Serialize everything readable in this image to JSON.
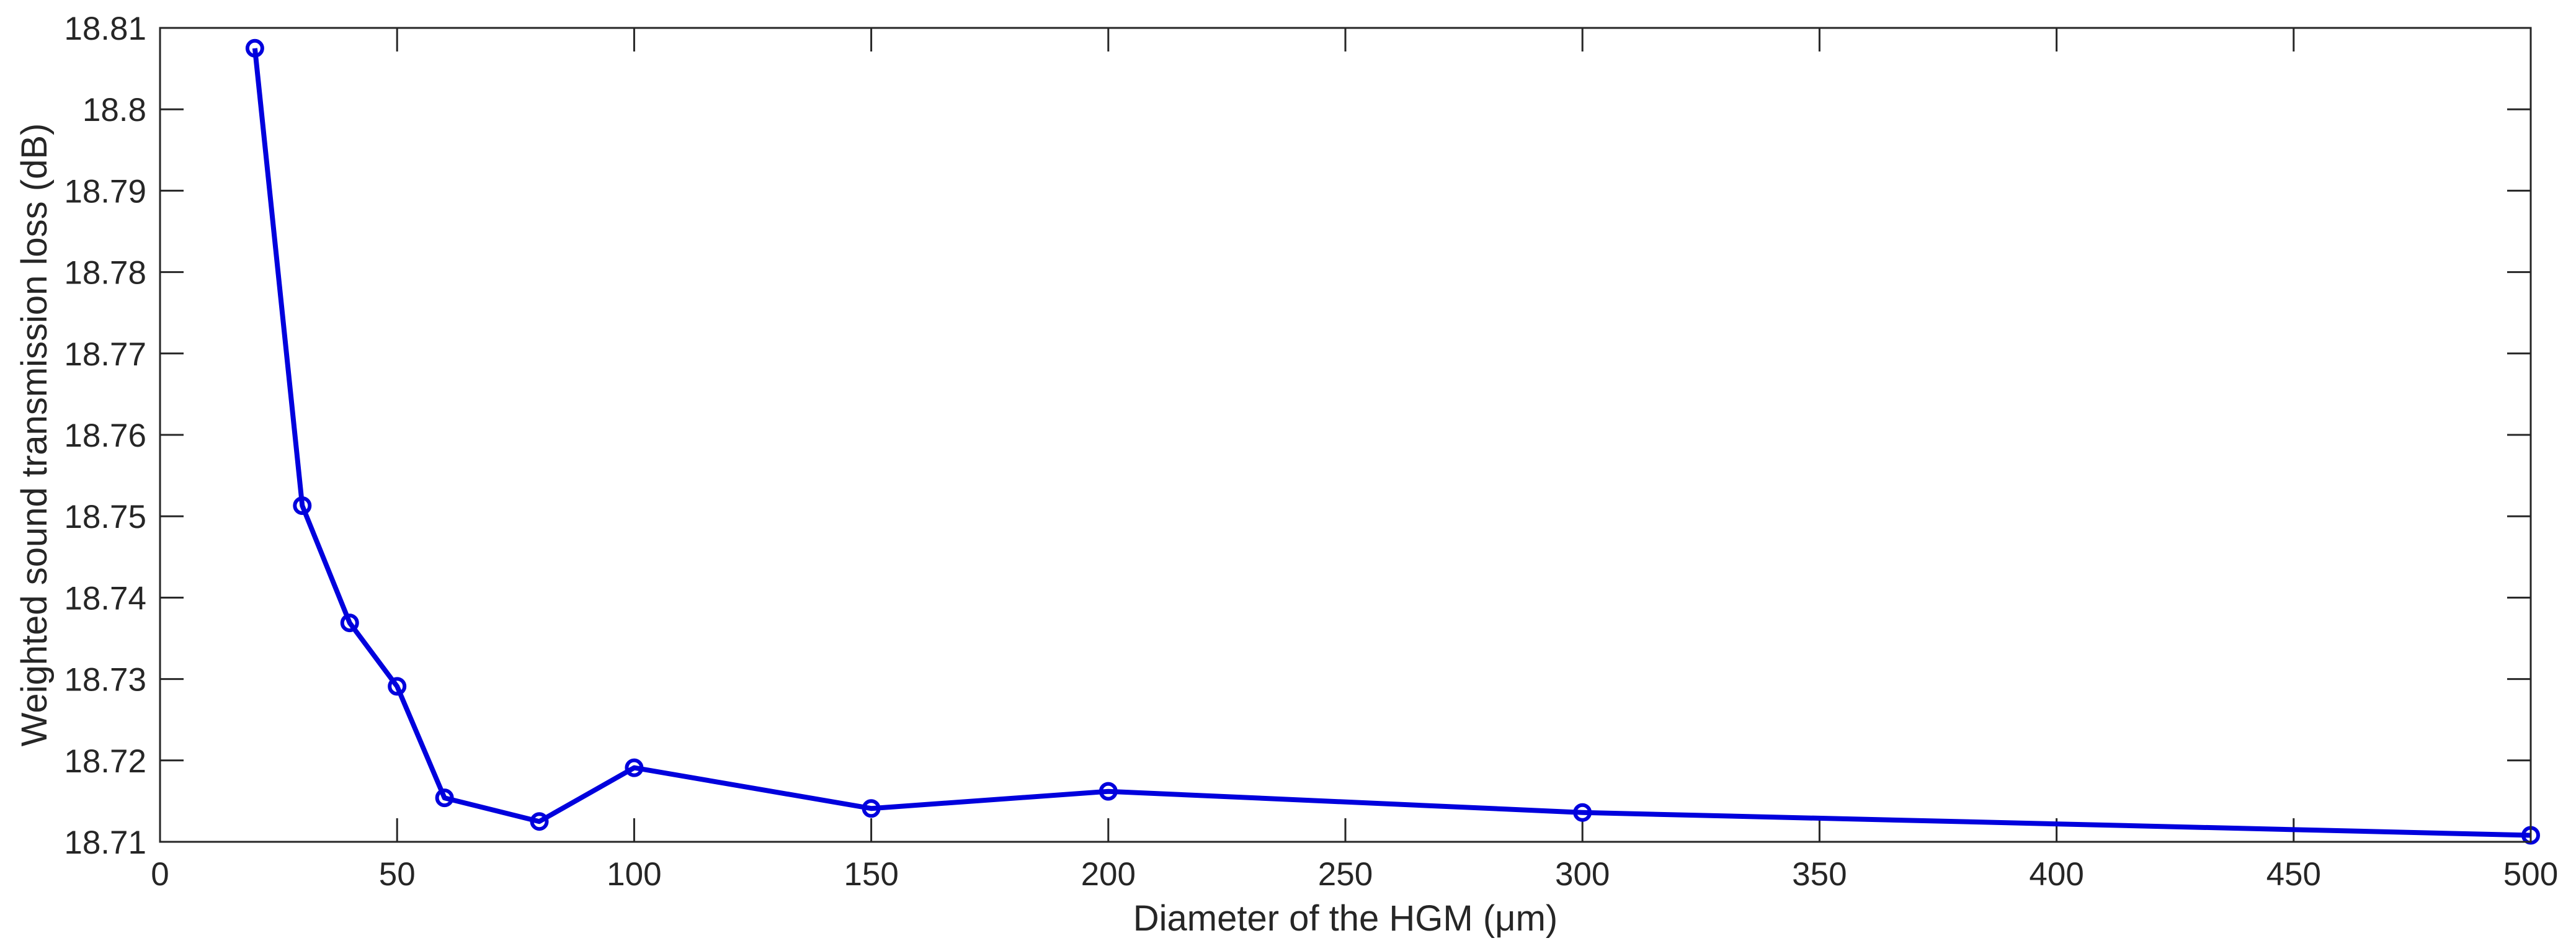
{
  "chart_data": {
    "type": "line",
    "title": "",
    "xlabel": "Diameter of the HGM (μm)",
    "ylabel": "Weighted sound transmission loss (dB)",
    "xlim": [
      0,
      500
    ],
    "ylim": [
      18.71,
      18.81
    ],
    "x_ticks": [
      "0",
      "50",
      "100",
      "150",
      "200",
      "250",
      "300",
      "350",
      "400",
      "450",
      "500"
    ],
    "y_ticks": [
      "18.71",
      "18.72",
      "18.73",
      "18.74",
      "18.75",
      "18.76",
      "18.77",
      "18.78",
      "18.79",
      "18.8",
      "18.81"
    ],
    "grid": false,
    "legend": "none",
    "marker": "open-circle",
    "series": [
      {
        "color": "#0000dd",
        "x": [
          20,
          30,
          40,
          50,
          60,
          80,
          100,
          150,
          200,
          300,
          500
        ],
        "y": [
          18.8075,
          18.7513,
          18.7369,
          18.7291,
          18.7154,
          18.7125,
          18.7191,
          18.7141,
          18.7162,
          18.7136,
          18.7108
        ]
      }
    ]
  }
}
